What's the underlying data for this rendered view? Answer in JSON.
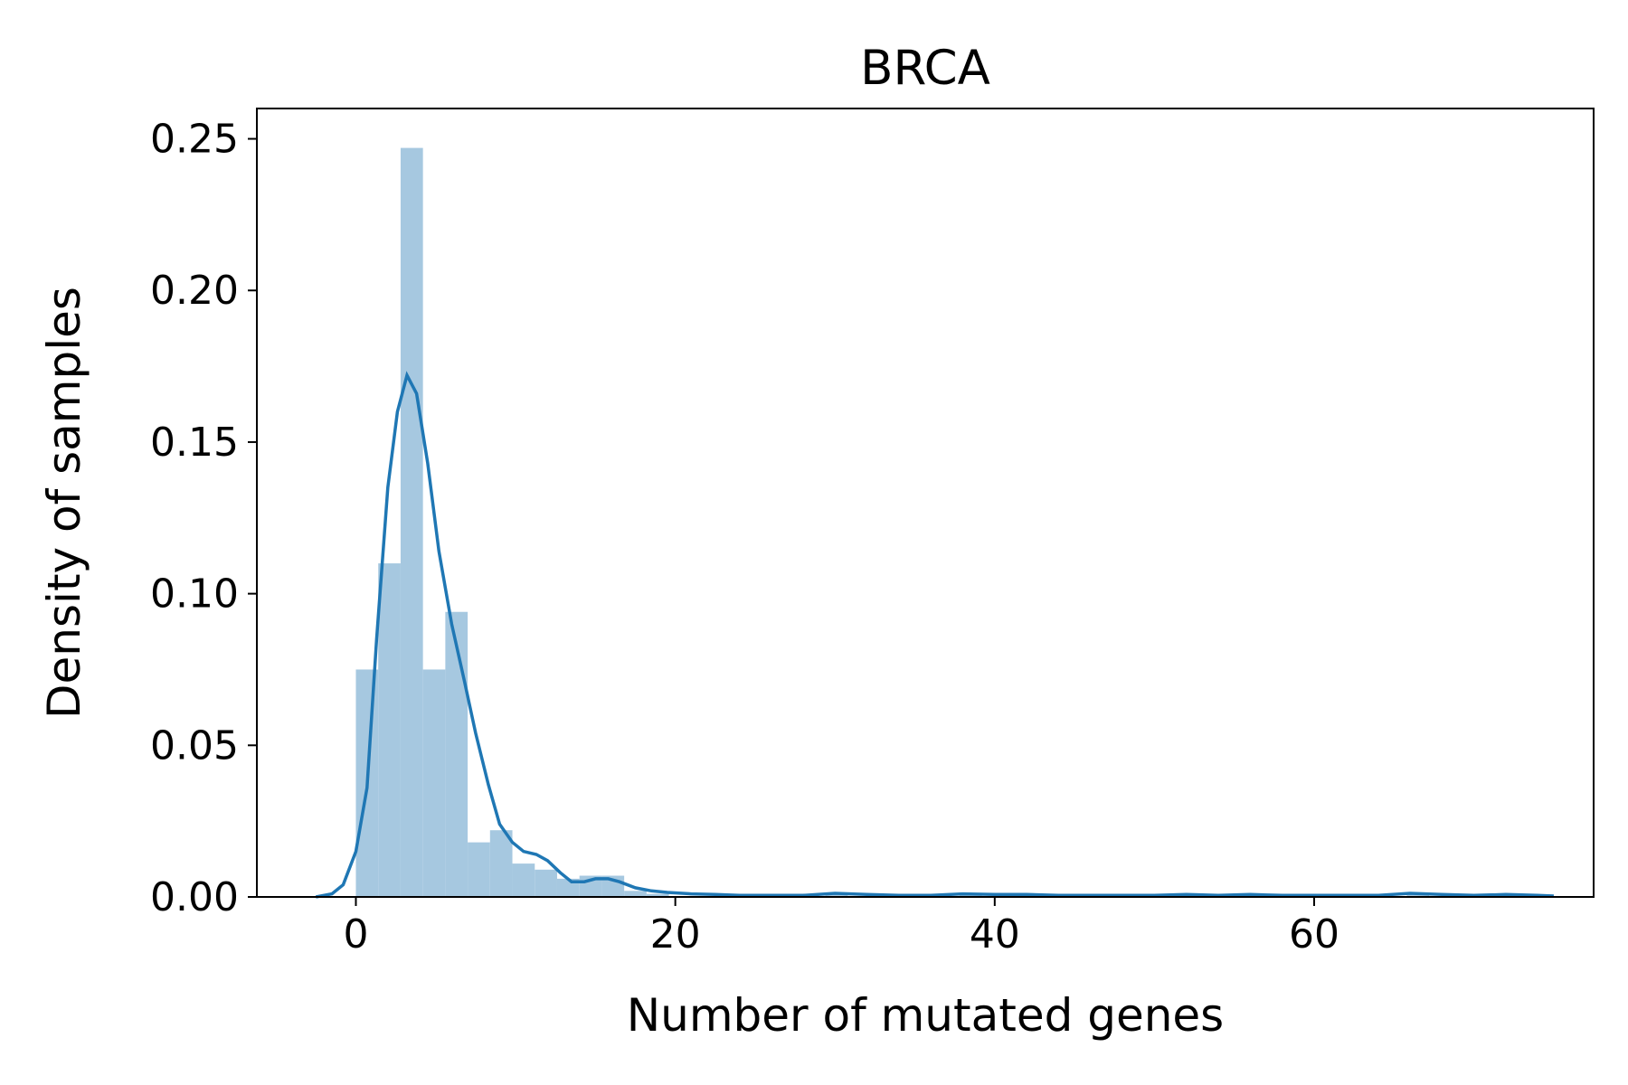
{
  "chart_data": {
    "type": "histogram",
    "title": "BRCA",
    "xlabel": "Number of mutated genes",
    "ylabel": "Density of samples",
    "xlim": [
      -6.2,
      77.5
    ],
    "ylim": [
      0,
      0.26
    ],
    "xticks": [
      0,
      20,
      40,
      60
    ],
    "xtick_labels": [
      "0",
      "20",
      "40",
      "60"
    ],
    "yticks": [
      0,
      0.05,
      0.1,
      0.15,
      0.2,
      0.25
    ],
    "ytick_labels": [
      "0.00",
      "0.05",
      "0.10",
      "0.15",
      "0.20",
      "0.25"
    ],
    "grid": false,
    "colors": {
      "bars": "#a6c8e0",
      "kde": "#1f77b4"
    },
    "histogram": {
      "bins": [
        {
          "x0": 0.0,
          "x1": 1.4,
          "value": 0.075
        },
        {
          "x0": 1.4,
          "x1": 2.8,
          "value": 0.11
        },
        {
          "x0": 2.8,
          "x1": 4.2,
          "value": 0.247
        },
        {
          "x0": 4.2,
          "x1": 5.6,
          "value": 0.075
        },
        {
          "x0": 5.6,
          "x1": 7.0,
          "value": 0.094
        },
        {
          "x0": 7.0,
          "x1": 8.4,
          "value": 0.018
        },
        {
          "x0": 8.4,
          "x1": 9.8,
          "value": 0.022
        },
        {
          "x0": 9.8,
          "x1": 11.2,
          "value": 0.011
        },
        {
          "x0": 11.2,
          "x1": 12.6,
          "value": 0.009
        },
        {
          "x0": 12.6,
          "x1": 14.0,
          "value": 0.006
        },
        {
          "x0": 14.0,
          "x1": 15.4,
          "value": 0.007
        },
        {
          "x0": 15.4,
          "x1": 16.8,
          "value": 0.007
        },
        {
          "x0": 16.8,
          "x1": 18.2,
          "value": 0.002
        },
        {
          "x0": 18.2,
          "x1": 19.6,
          "value": 0.001
        },
        {
          "x0": 29.4,
          "x1": 30.8,
          "value": 0.001
        },
        {
          "x0": 37.8,
          "x1": 39.2,
          "value": 0.001
        },
        {
          "x0": 65.8,
          "x1": 67.2,
          "value": 0.001
        },
        {
          "x0": 71.4,
          "x1": 72.8,
          "value": 0.001
        }
      ]
    },
    "kde": {
      "x": [
        -2.5,
        -1.5,
        -0.8,
        0.0,
        0.7,
        1.3,
        2.0,
        2.6,
        3.2,
        3.8,
        4.5,
        5.2,
        6.0,
        6.8,
        7.5,
        8.3,
        9.0,
        9.8,
        10.5,
        11.3,
        12.0,
        12.8,
        13.5,
        14.3,
        15.0,
        15.8,
        16.5,
        17.5,
        18.5,
        19.5,
        21.0,
        22.5,
        24.0,
        26.0,
        28.0,
        30.0,
        32.0,
        34.0,
        36.0,
        38.0,
        40.0,
        42.0,
        44.0,
        46.0,
        48.0,
        50.0,
        52.0,
        54.0,
        56.0,
        58.0,
        60.0,
        62.0,
        64.0,
        66.0,
        68.0,
        70.0,
        72.0,
        74.0,
        75.0
      ],
      "y": [
        0.0,
        0.001,
        0.004,
        0.015,
        0.036,
        0.085,
        0.135,
        0.16,
        0.172,
        0.166,
        0.143,
        0.114,
        0.09,
        0.071,
        0.054,
        0.037,
        0.024,
        0.018,
        0.015,
        0.014,
        0.012,
        0.008,
        0.005,
        0.005,
        0.006,
        0.006,
        0.005,
        0.003,
        0.002,
        0.0015,
        0.001,
        0.0008,
        0.0005,
        0.0005,
        0.0005,
        0.0012,
        0.0008,
        0.0005,
        0.0005,
        0.001,
        0.0008,
        0.0008,
        0.0005,
        0.0005,
        0.0005,
        0.0005,
        0.0008,
        0.0005,
        0.0008,
        0.0005,
        0.0005,
        0.0005,
        0.0005,
        0.0012,
        0.0008,
        0.0005,
        0.0008,
        0.0005,
        0.0003
      ]
    }
  }
}
